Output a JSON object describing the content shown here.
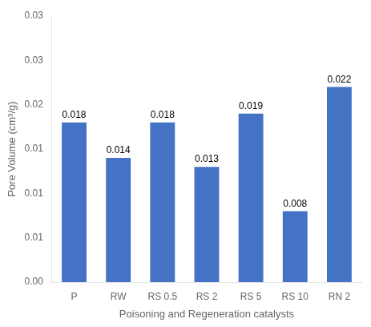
{
  "chart_data": {
    "type": "bar",
    "categories": [
      "P",
      "RW",
      "RS 0.5",
      "RS 2",
      "RS 5",
      "RS 10",
      "RN 2"
    ],
    "values": [
      0.018,
      0.014,
      0.018,
      0.013,
      0.019,
      0.008,
      0.022
    ],
    "color": "#4472C4",
    "xlabel": "Poisoning and Regeneration catalysts",
    "ylabel": "Pore Volume (cm³/g)",
    "ylim": [
      0.0,
      0.03
    ],
    "yticks": [
      {
        "value": 0.0,
        "label": "0.00"
      },
      {
        "value": 0.005,
        "label": "0.01"
      },
      0.01,
      {
        "value": 0.015,
        "label": "0.01"
      },
      0.02,
      {
        "value": 0.025,
        "label": "0.03"
      },
      0.03
    ],
    "grid": false,
    "data_labels": true
  }
}
